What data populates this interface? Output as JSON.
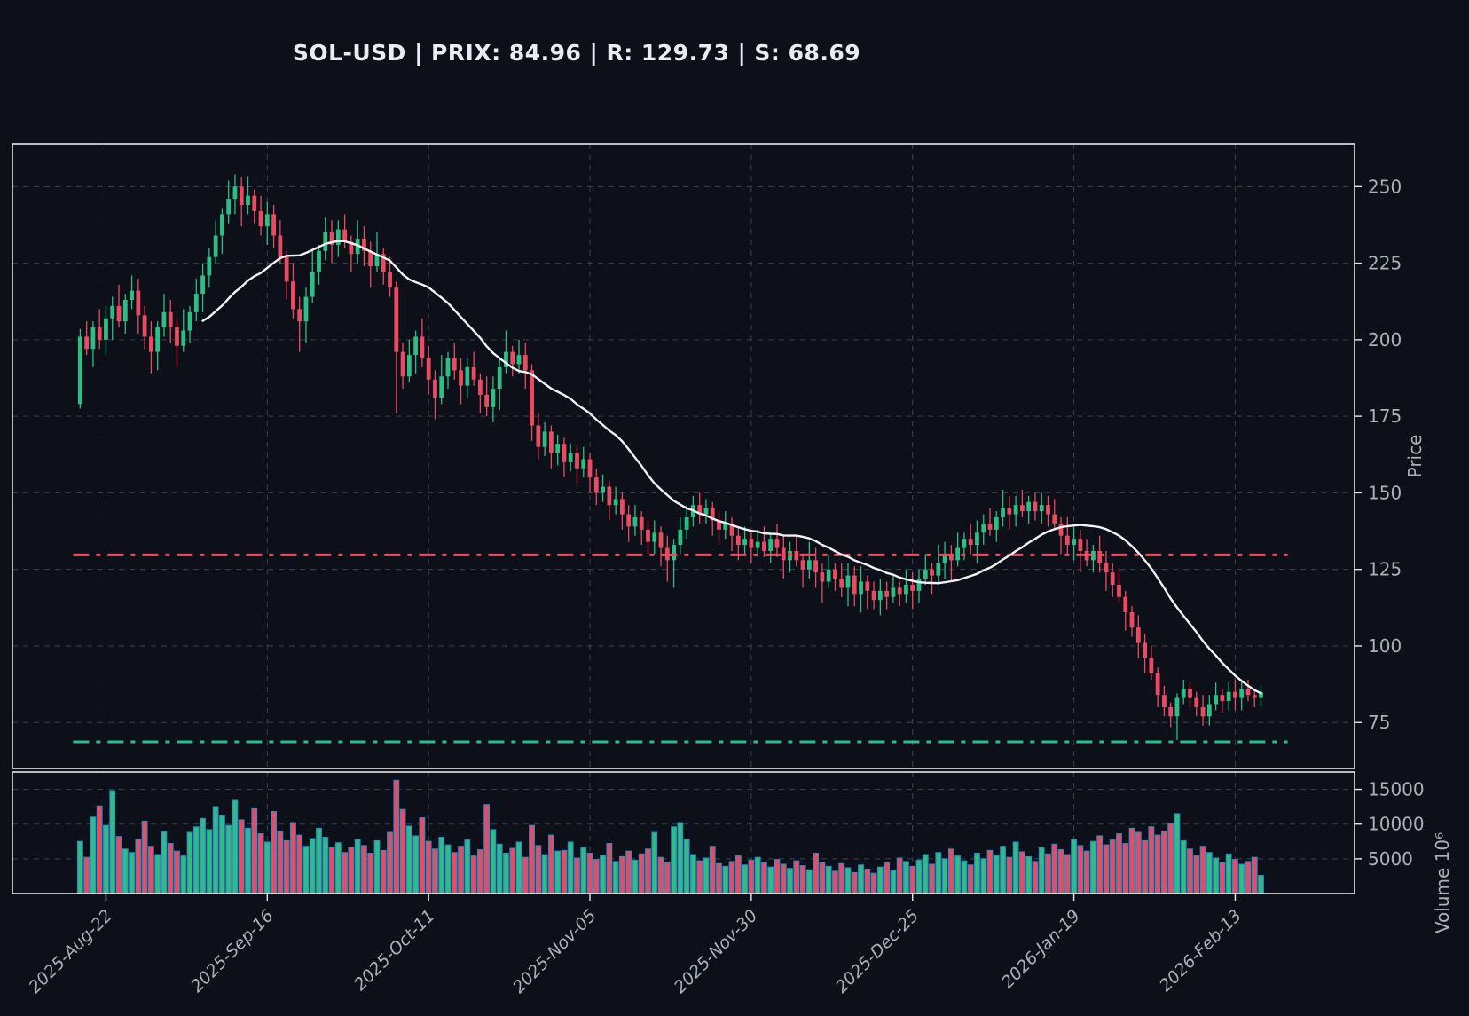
{
  "title": "SOL-USD | PRIX: 84.96 | R: 129.73 | S: 68.69",
  "colors": {
    "background": "#0d1019",
    "up": "#2ebd85",
    "down": "#e74c63",
    "ma_line": "#f2f2f2",
    "grid": "#3a4150",
    "border": "#e8e8e8",
    "tick_label": "#a9b1bd",
    "title": "#e9edf3",
    "volume_bar_edge": "#3a87c2",
    "resistance": "#e74c63",
    "support": "#2ebd85"
  },
  "chart_data": {
    "type": "candlestick+volume",
    "symbol": "SOL-USD",
    "last_price": 84.96,
    "resistance": 129.73,
    "support": 68.69,
    "ma_window": 20,
    "grid": true,
    "x_ticks": [
      {
        "label": "2025-Aug-22",
        "index": 4
      },
      {
        "label": "2025-Sep-16",
        "index": 29
      },
      {
        "label": "2025-Oct-11",
        "index": 54
      },
      {
        "label": "2025-Nov-05",
        "index": 79
      },
      {
        "label": "2025-Nov-30",
        "index": 104
      },
      {
        "label": "2025-Dec-25",
        "index": 129
      },
      {
        "label": "2026-Jan-19",
        "index": 154
      },
      {
        "label": "2026-Feb-13",
        "index": 179
      }
    ],
    "price_axis": {
      "label": "Price",
      "ticks": [
        75,
        100,
        125,
        150,
        175,
        200,
        225,
        250
      ],
      "ylim": [
        60,
        264
      ]
    },
    "volume_axis": {
      "label": "Volume",
      "multiplier": "10⁶",
      "label_full": "Volume  10⁶",
      "ticks": [
        5000,
        10000,
        15000
      ],
      "ylim": [
        0,
        17500
      ]
    },
    "ohlcv_columns": [
      "open",
      "high",
      "low",
      "close",
      "volume"
    ],
    "ohlcv": [
      [
        179,
        203.5,
        177.5,
        201,
        7500
      ],
      [
        201,
        206,
        195,
        197,
        5200
      ],
      [
        197,
        206,
        191,
        204,
        11000
      ],
      [
        204,
        210,
        197,
        200,
        12600
      ],
      [
        200,
        211,
        195,
        207,
        9800
      ],
      [
        207,
        214,
        200,
        211,
        14800
      ],
      [
        211,
        218,
        204,
        206,
        8200
      ],
      [
        206,
        215,
        202,
        213,
        6400
      ],
      [
        213,
        221,
        210,
        216,
        5900
      ],
      [
        216,
        220,
        202,
        208,
        7800
      ],
      [
        208,
        211,
        197,
        201,
        10400
      ],
      [
        201,
        206,
        189,
        196,
        6800
      ],
      [
        196,
        206,
        190,
        204,
        5600
      ],
      [
        204,
        215,
        201,
        209,
        8900
      ],
      [
        209,
        213,
        199,
        204,
        7200
      ],
      [
        204,
        207,
        191,
        198,
        6100
      ],
      [
        198,
        210,
        196,
        203,
        5400
      ],
      [
        203,
        211,
        199,
        209,
        8800
      ],
      [
        209,
        220,
        206,
        215,
        9600
      ],
      [
        215,
        225,
        209,
        221,
        10800
      ],
      [
        221,
        230,
        217,
        227,
        9200
      ],
      [
        227,
        239,
        225,
        234,
        12500
      ],
      [
        234,
        243,
        228,
        241,
        11200
      ],
      [
        241,
        252,
        238,
        246,
        9800
      ],
      [
        246,
        254,
        241,
        250,
        13400
      ],
      [
        250,
        253,
        237,
        244,
        10600
      ],
      [
        244,
        253.4,
        241,
        247,
        9400
      ],
      [
        247,
        249,
        238,
        242,
        12200
      ],
      [
        242,
        247,
        234,
        237,
        8600
      ],
      [
        237,
        245,
        231,
        241,
        7400
      ],
      [
        241,
        244,
        230,
        234,
        11800
      ],
      [
        234,
        239,
        225,
        227,
        9000
      ],
      [
        227,
        229,
        213,
        219,
        7600
      ],
      [
        219,
        225,
        207,
        210,
        10200
      ],
      [
        210,
        214,
        196,
        206,
        8400
      ],
      [
        206,
        217,
        199,
        214,
        6800
      ],
      [
        214,
        229,
        212,
        222,
        7900
      ],
      [
        222,
        231,
        218,
        229,
        9400
      ],
      [
        229,
        240,
        226,
        235,
        8100
      ],
      [
        235,
        239,
        225,
        231,
        6600
      ],
      [
        231,
        239,
        227,
        236,
        7300
      ],
      [
        236,
        241,
        230,
        232,
        5900
      ],
      [
        232,
        234,
        222,
        228,
        6700
      ],
      [
        228,
        239,
        225,
        233,
        7800
      ],
      [
        233,
        237,
        224,
        229,
        6900
      ],
      [
        229,
        232,
        217,
        224,
        5800
      ],
      [
        224,
        235,
        222,
        228,
        7600
      ],
      [
        228,
        230,
        218,
        222,
        6200
      ],
      [
        222,
        227,
        214,
        217,
        8800
      ],
      [
        217,
        219,
        176,
        196,
        16300
      ],
      [
        196,
        199,
        184,
        188,
        12100
      ],
      [
        188,
        200,
        186,
        195,
        9700
      ],
      [
        195,
        203,
        189,
        201,
        8300
      ],
      [
        201,
        207,
        191,
        194,
        10900
      ],
      [
        194,
        198,
        182,
        187,
        7500
      ],
      [
        187,
        190,
        174,
        181,
        6400
      ],
      [
        181,
        195,
        179,
        188,
        8100
      ],
      [
        188,
        196,
        184,
        194,
        7000
      ],
      [
        194,
        199,
        187,
        190,
        5900
      ],
      [
        190,
        194,
        179,
        185,
        6800
      ],
      [
        185,
        194,
        181,
        191,
        7700
      ],
      [
        191,
        196,
        185,
        187,
        5400
      ],
      [
        187,
        189,
        176,
        182,
        6300
      ],
      [
        182,
        188,
        175,
        178,
        12800
      ],
      [
        178,
        188,
        173,
        184,
        9200
      ],
      [
        184,
        194,
        177,
        191,
        7100
      ],
      [
        191,
        203,
        189,
        196,
        5800
      ],
      [
        196,
        198,
        188,
        192,
        6500
      ],
      [
        192,
        200,
        189,
        195,
        7400
      ],
      [
        195,
        199,
        184,
        190,
        5200
      ],
      [
        190,
        192,
        167,
        172,
        9800
      ],
      [
        172,
        176,
        161,
        165,
        6900
      ],
      [
        165,
        173,
        162,
        170,
        5600
      ],
      [
        170,
        172,
        158,
        163,
        8400
      ],
      [
        163,
        169,
        159,
        166,
        6100
      ],
      [
        166,
        168,
        155,
        160,
        6200
      ],
      [
        160,
        166,
        157,
        163,
        7400
      ],
      [
        163,
        166,
        153,
        158,
        5100
      ],
      [
        158,
        165,
        155,
        161,
        6600
      ],
      [
        161,
        163,
        150,
        155,
        5800
      ],
      [
        155,
        158,
        146,
        150,
        4900
      ],
      [
        150,
        156,
        147,
        152,
        5500
      ],
      [
        152,
        154,
        141,
        146,
        7200
      ],
      [
        146,
        152,
        143,
        148,
        4600
      ],
      [
        148,
        150,
        138,
        143,
        5300
      ],
      [
        143,
        146,
        134,
        139,
        6100
      ],
      [
        139,
        146,
        136,
        142,
        4800
      ],
      [
        142,
        144,
        133,
        138,
        5700
      ],
      [
        138,
        141,
        130,
        134,
        6400
      ],
      [
        134,
        141,
        130,
        137,
        8800
      ],
      [
        137,
        139,
        126,
        132,
        5200
      ],
      [
        132,
        136,
        121,
        128,
        4400
      ],
      [
        128,
        135,
        119,
        133,
        9600
      ],
      [
        133,
        142,
        130,
        138,
        10200
      ],
      [
        138,
        146,
        135,
        142,
        7800
      ],
      [
        142,
        149,
        139,
        146,
        5600
      ],
      [
        146,
        150,
        140,
        143,
        4700
      ],
      [
        143,
        148,
        140,
        145,
        5100
      ],
      [
        145,
        147,
        136,
        141,
        6800
      ],
      [
        141,
        144,
        133,
        138,
        4300
      ],
      [
        138,
        144,
        135,
        140,
        3900
      ],
      [
        140,
        142,
        131,
        136,
        4600
      ],
      [
        136,
        139,
        128,
        133,
        5400
      ],
      [
        133,
        139,
        130,
        135,
        4100
      ],
      [
        135,
        137,
        127,
        132,
        4800
      ],
      [
        132,
        138,
        129,
        134,
        5200
      ],
      [
        134,
        139,
        129,
        131,
        4400
      ],
      [
        131,
        137,
        127,
        135,
        3800
      ],
      [
        135,
        140,
        129,
        132,
        4900
      ],
      [
        132,
        136,
        122,
        128,
        4200
      ],
      [
        128,
        134,
        124,
        131,
        3600
      ],
      [
        131,
        136,
        126,
        128,
        4700
      ],
      [
        128,
        130,
        119,
        125,
        4000
      ],
      [
        125,
        134,
        122,
        128,
        3400
      ],
      [
        128,
        132,
        119,
        124,
        5800
      ],
      [
        124,
        127,
        114,
        121,
        4500
      ],
      [
        121,
        130,
        119,
        125,
        3900
      ],
      [
        125,
        127,
        118,
        122,
        3200
      ],
      [
        122,
        127,
        116,
        119,
        4300
      ],
      [
        119,
        127,
        113,
        123,
        3700
      ],
      [
        123,
        126,
        113,
        117,
        3000
      ],
      [
        117,
        126,
        111,
        121,
        4100
      ],
      [
        121,
        123,
        112,
        118,
        3500
      ],
      [
        118,
        121,
        112,
        115,
        2900
      ],
      [
        115,
        122,
        110,
        118,
        3800
      ],
      [
        118,
        121,
        112,
        116,
        4400
      ],
      [
        116,
        123,
        114,
        119,
        3300
      ],
      [
        119,
        121,
        113,
        117,
        5100
      ],
      [
        117,
        125,
        114,
        120,
        4600
      ],
      [
        120,
        124,
        112,
        118,
        3900
      ],
      [
        118,
        125,
        114,
        122,
        4800
      ],
      [
        122,
        130,
        120,
        125,
        5600
      ],
      [
        125,
        127,
        117,
        123,
        4200
      ],
      [
        123,
        133,
        120,
        127,
        5900
      ],
      [
        127,
        134,
        122,
        130,
        5000
      ],
      [
        130,
        133,
        121,
        128,
        6400
      ],
      [
        128,
        137,
        126,
        132,
        5400
      ],
      [
        132,
        137,
        128,
        135,
        4700
      ],
      [
        135,
        140,
        130,
        133,
        4100
      ],
      [
        133,
        141,
        127,
        137,
        5800
      ],
      [
        137,
        143,
        133,
        140,
        5000
      ],
      [
        140,
        145,
        136,
        138,
        6200
      ],
      [
        138,
        144,
        134,
        142,
        5500
      ],
      [
        142,
        151,
        139,
        145,
        6800
      ],
      [
        145,
        149,
        138,
        143,
        5200
      ],
      [
        143,
        149,
        139,
        146,
        7400
      ],
      [
        146,
        151,
        142,
        144,
        6000
      ],
      [
        144,
        149,
        140,
        147,
        5300
      ],
      [
        147,
        150,
        141,
        144,
        4600
      ],
      [
        144,
        150,
        140,
        146,
        6600
      ],
      [
        146,
        149,
        139,
        143,
        5700
      ],
      [
        143,
        148,
        138,
        140,
        7100
      ],
      [
        140,
        142,
        130,
        136,
        6300
      ],
      [
        136,
        142,
        130,
        133,
        5600
      ],
      [
        133,
        139,
        128,
        135,
        7800
      ],
      [
        135,
        138,
        124,
        131,
        6900
      ],
      [
        131,
        135,
        126,
        128,
        6100
      ],
      [
        128,
        133,
        124,
        131,
        7500
      ],
      [
        131,
        136,
        124,
        127,
        8300
      ],
      [
        127,
        131,
        118,
        124,
        7000
      ],
      [
        124,
        127,
        116,
        120,
        7700
      ],
      [
        120,
        125,
        114,
        116,
        8600
      ],
      [
        116,
        118,
        105,
        111,
        7200
      ],
      [
        111,
        113,
        103,
        106,
        9400
      ],
      [
        106,
        110,
        96,
        101,
        8800
      ],
      [
        101,
        104,
        91,
        96,
        7600
      ],
      [
        96,
        100,
        89,
        91,
        9600
      ],
      [
        91,
        93,
        80,
        84,
        8400
      ],
      [
        84,
        87,
        77,
        80,
        9000
      ],
      [
        80,
        81.5,
        73.5,
        77,
        10100
      ],
      [
        77,
        84.5,
        69.3,
        83,
        11500
      ],
      [
        83,
        89,
        81,
        86,
        7600
      ],
      [
        86,
        88,
        80,
        83,
        6400
      ],
      [
        83,
        85,
        77,
        80,
        5500
      ],
      [
        80,
        84,
        74,
        77,
        6800
      ],
      [
        77,
        84,
        74,
        81,
        5900
      ],
      [
        81,
        88,
        79,
        84,
        5100
      ],
      [
        84,
        86,
        78,
        82,
        4400
      ],
      [
        82,
        88,
        79,
        85,
        5700
      ],
      [
        85,
        89,
        79,
        83,
        4900
      ],
      [
        83,
        89,
        79,
        86,
        4200
      ],
      [
        86,
        89,
        82,
        84,
        4600
      ],
      [
        84,
        86,
        80,
        83,
        5200
      ],
      [
        83,
        87,
        80,
        84.96,
        2600
      ]
    ]
  }
}
